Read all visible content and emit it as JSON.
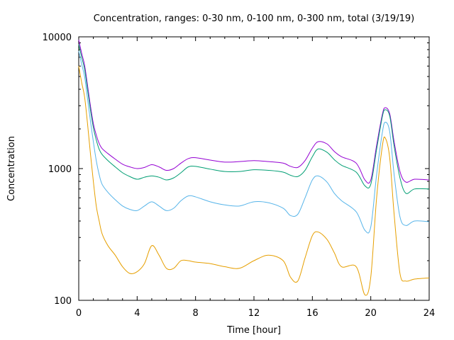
{
  "chart_data": {
    "type": "line",
    "title": "Concentration, ranges: 0-30 nm, 0-100 nm, 0-300 nm, total (3/19/19)",
    "xlabel": "Time [hour]",
    "ylabel": "Concentration",
    "xlim": [
      0,
      24
    ],
    "ylim": [
      100,
      10000
    ],
    "yscale": "log",
    "xticks": [
      0,
      4,
      8,
      12,
      16,
      20,
      24
    ],
    "yticks": [
      100,
      1000,
      10000
    ],
    "grid": false,
    "legend": "none",
    "series": [
      {
        "color": "#9400d3",
        "x": [
          0,
          0.2,
          0.4,
          0.6,
          0.8,
          1.0,
          1.2,
          1.4,
          1.6,
          2.0,
          2.5,
          3.0,
          3.5,
          4.0,
          4.5,
          5.0,
          5.5,
          6.0,
          6.5,
          7.0,
          7.5,
          8.0,
          9.0,
          10.0,
          11.0,
          12.0,
          13.0,
          14.0,
          14.5,
          15.0,
          15.5,
          16.0,
          16.4,
          17.0,
          17.5,
          18.0,
          19.0,
          19.6,
          20.0,
          20.4,
          20.8,
          21.0,
          21.3,
          21.6,
          22.0,
          22.4,
          23.0,
          24.0
        ],
        "values": [
          9500,
          7500,
          6100,
          4300,
          3000,
          2200,
          1800,
          1550,
          1420,
          1300,
          1180,
          1080,
          1030,
          1000,
          1020,
          1070,
          1030,
          970,
          1000,
          1100,
          1190,
          1210,
          1160,
          1120,
          1130,
          1150,
          1130,
          1100,
          1040,
          1020,
          1150,
          1430,
          1600,
          1540,
          1350,
          1230,
          1100,
          820,
          820,
          1500,
          2600,
          2900,
          2600,
          1600,
          950,
          790,
          830,
          820
        ]
      },
      {
        "color": "#009e73",
        "x": [
          0,
          0.2,
          0.4,
          0.6,
          0.8,
          1.0,
          1.2,
          1.4,
          1.6,
          2.0,
          2.5,
          3.0,
          3.5,
          4.0,
          4.5,
          5.0,
          5.5,
          6.0,
          6.5,
          7.0,
          7.5,
          8.0,
          9.0,
          10.0,
          11.0,
          12.0,
          13.0,
          14.0,
          14.5,
          15.0,
          15.5,
          16.0,
          16.4,
          17.0,
          17.5,
          18.0,
          19.0,
          19.6,
          20.0,
          20.4,
          20.8,
          21.0,
          21.3,
          21.6,
          22.0,
          22.4,
          23.0,
          24.0
        ],
        "values": [
          8800,
          7000,
          5700,
          4000,
          2800,
          2050,
          1650,
          1400,
          1280,
          1150,
          1030,
          930,
          870,
          830,
          860,
          880,
          860,
          820,
          850,
          930,
          1030,
          1040,
          990,
          950,
          950,
          980,
          970,
          940,
          890,
          870,
          970,
          1230,
          1410,
          1330,
          1170,
          1060,
          940,
          740,
          760,
          1400,
          2500,
          2800,
          2500,
          1480,
          850,
          650,
          700,
          700
        ]
      },
      {
        "color": "#56b4e9",
        "x": [
          0,
          0.2,
          0.4,
          0.6,
          0.8,
          1.0,
          1.2,
          1.4,
          1.6,
          2.0,
          2.5,
          3.0,
          3.5,
          4.0,
          4.5,
          5.0,
          5.5,
          6.0,
          6.5,
          7.0,
          7.5,
          8.0,
          9.0,
          10.0,
          11.0,
          12.0,
          13.0,
          14.0,
          14.5,
          15.0,
          15.5,
          16.0,
          16.4,
          17.0,
          17.5,
          18.0,
          19.0,
          19.6,
          20.0,
          20.4,
          20.8,
          21.0,
          21.3,
          21.6,
          22.0,
          22.4,
          23.0,
          24.0
        ],
        "values": [
          7800,
          6200,
          5000,
          3400,
          2300,
          1600,
          1150,
          900,
          760,
          660,
          580,
          520,
          490,
          480,
          520,
          560,
          520,
          480,
          500,
          570,
          620,
          610,
          560,
          530,
          520,
          560,
          550,
          500,
          440,
          450,
          600,
          820,
          880,
          790,
          650,
          570,
          470,
          340,
          360,
          900,
          1900,
          2250,
          1900,
          900,
          430,
          370,
          400,
          395
        ]
      },
      {
        "color": "#e69f00",
        "x": [
          0,
          0.2,
          0.4,
          0.6,
          0.8,
          1.0,
          1.2,
          1.4,
          1.6,
          2.0,
          2.5,
          3.0,
          3.5,
          4.0,
          4.5,
          5.0,
          5.5,
          6.0,
          6.5,
          7.0,
          7.5,
          8.0,
          9.0,
          10.0,
          11.0,
          12.0,
          13.0,
          14.0,
          14.5,
          15.0,
          15.5,
          16.0,
          16.4,
          17.0,
          17.5,
          18.0,
          19.0,
          19.6,
          20.0,
          20.4,
          20.8,
          21.0,
          21.3,
          21.6,
          22.0,
          22.4,
          23.0,
          24.0
        ],
        "values": [
          6000,
          4500,
          3500,
          2200,
          1300,
          800,
          520,
          400,
          320,
          260,
          220,
          180,
          160,
          165,
          190,
          260,
          220,
          175,
          175,
          200,
          200,
          195,
          190,
          180,
          175,
          200,
          220,
          200,
          150,
          140,
          210,
          310,
          330,
          290,
          230,
          180,
          180,
          110,
          150,
          600,
          1500,
          1700,
          1200,
          450,
          160,
          140,
          145,
          148
        ]
      }
    ]
  }
}
